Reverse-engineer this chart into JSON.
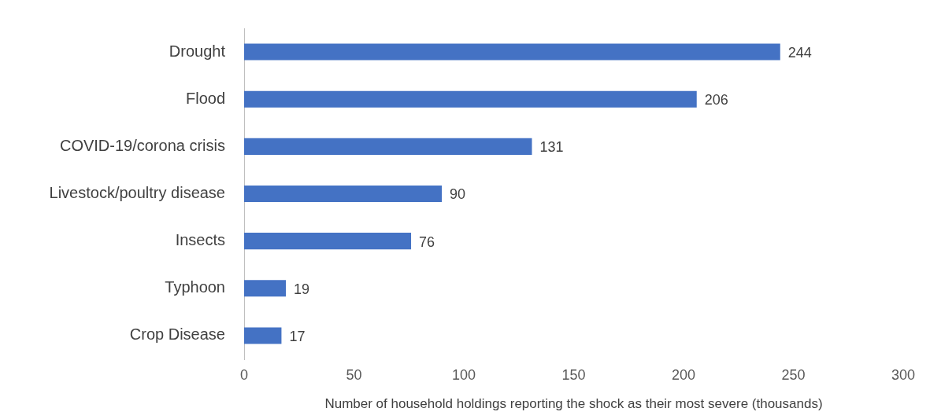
{
  "chart_data": {
    "type": "bar",
    "orientation": "horizontal",
    "categories": [
      "Drought",
      "Flood",
      "COVID-19/corona crisis",
      "Livestock/poultry disease",
      "Insects",
      "Typhoon",
      "Crop Disease"
    ],
    "values": [
      244,
      206,
      131,
      90,
      76,
      19,
      17
    ],
    "color": "#4472c4",
    "data_labels": true,
    "xlim": [
      0,
      300
    ],
    "xticks": [
      0,
      50,
      100,
      150,
      200,
      250,
      300
    ],
    "xlabel": "Number of household holdings reporting the shock as their most severe (thousands)"
  }
}
